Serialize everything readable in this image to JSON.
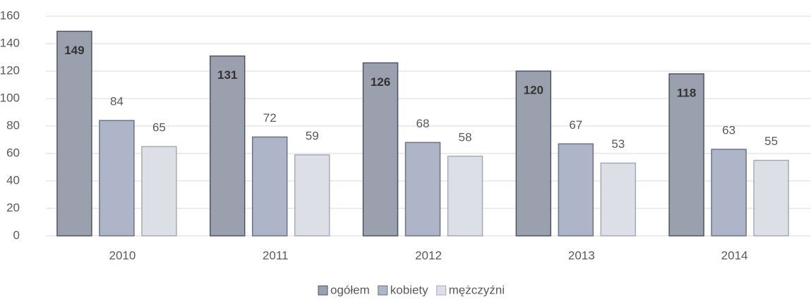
{
  "chart_data": {
    "type": "bar",
    "categories": [
      "2010",
      "2011",
      "2012",
      "2013",
      "2014"
    ],
    "series": [
      {
        "name": "ogółem",
        "color": "#9aa0ae",
        "values": [
          149,
          131,
          126,
          120,
          118
        ]
      },
      {
        "name": "kobiety",
        "color": "#aeb5c9",
        "values": [
          84,
          72,
          68,
          67,
          63
        ]
      },
      {
        "name": "mężczyźni",
        "color": "#dcdfe6",
        "values": [
          65,
          59,
          58,
          53,
          55
        ]
      }
    ],
    "ylim": [
      0,
      160
    ],
    "yticks": [
      0,
      20,
      40,
      60,
      80,
      100,
      120,
      140,
      160
    ],
    "grid": true,
    "legend": "bottom"
  }
}
